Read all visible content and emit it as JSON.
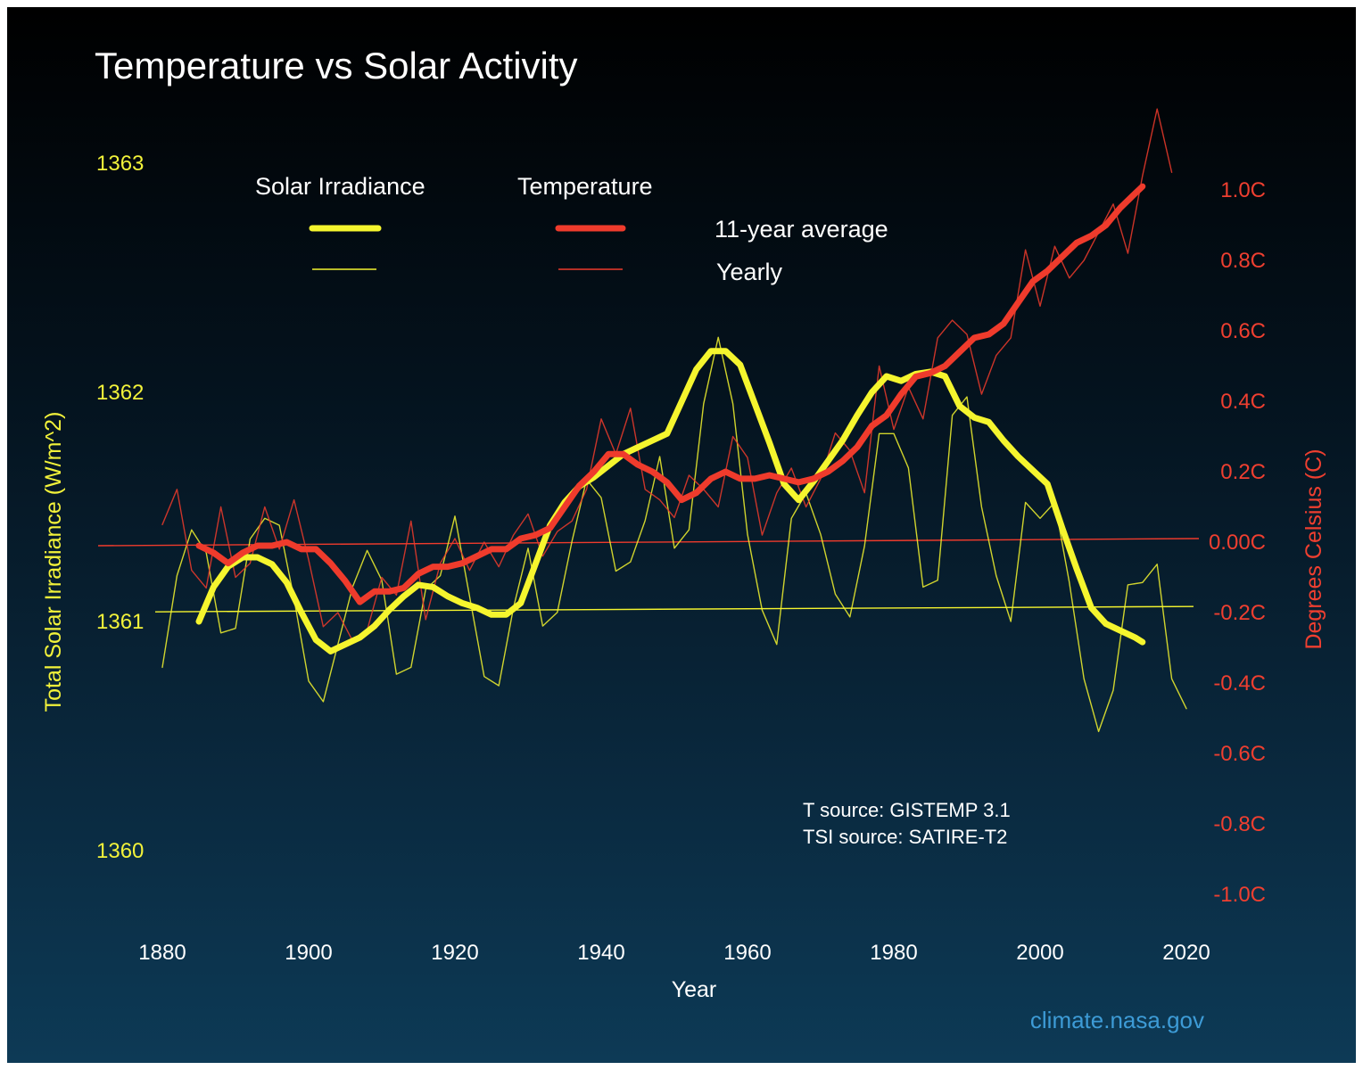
{
  "chart_data": {
    "type": "line",
    "title": "Temperature vs Solar Activity",
    "xlabel": "Year",
    "ylabel_left": "Total Solar Irradiance (W/m^2)",
    "ylabel_right": "Degrees Celsius (C)",
    "xlim": [
      1875,
      2025
    ],
    "ylim_left": [
      1359.6,
      1363.3
    ],
    "ylim_right": [
      -1.1,
      1.2
    ],
    "x_ticks": [
      "1880",
      "1900",
      "1920",
      "1940",
      "1960",
      "1980",
      "2000",
      "2020"
    ],
    "y_ticks_left": [
      {
        "value": 1363,
        "label": "1363"
      },
      {
        "value": 1362,
        "label": "1362"
      },
      {
        "value": 1361,
        "label": "1361"
      },
      {
        "value": 1360,
        "label": "1360"
      }
    ],
    "y_ticks_right": [
      {
        "value": 1.0,
        "label": "1.0C"
      },
      {
        "value": 0.8,
        "label": "0.8C"
      },
      {
        "value": 0.6,
        "label": "0.6C"
      },
      {
        "value": 0.4,
        "label": "0.4C"
      },
      {
        "value": 0.2,
        "label": "0.2C"
      },
      {
        "value": 0.0,
        "label": "0.00C"
      },
      {
        "value": -0.2,
        "label": "-0.2C"
      },
      {
        "value": -0.4,
        "label": "-0.4C"
      },
      {
        "value": -0.6,
        "label": "-0.6C"
      },
      {
        "value": -0.8,
        "label": "-0.8C"
      },
      {
        "value": -1.0,
        "label": "-1.0C"
      }
    ],
    "colors": {
      "solar": "#f5f52e",
      "temperature": "#ef3b2c",
      "credit": "#3d9bd6"
    },
    "legend": {
      "group_solar": "Solar Irradiance",
      "group_temperature": "Temperature",
      "row_average": "11-year average",
      "row_yearly": "Yearly"
    },
    "sources": [
      "T source: GISTEMP 3.1",
      "TSI source: SATIRE-T2"
    ],
    "credit": "climate.nasa.gov",
    "reference_lines": {
      "tsi": 1361.05,
      "temperature": 0.0
    },
    "series": [
      {
        "name": "Solar Irradiance 11-year average",
        "axis": "left",
        "style": "thick",
        "x": [
          1885,
          1887,
          1889,
          1891,
          1893,
          1895,
          1897,
          1899,
          1901,
          1903,
          1905,
          1907,
          1909,
          1911,
          1913,
          1915,
          1917,
          1919,
          1921,
          1923,
          1925,
          1927,
          1929,
          1931,
          1933,
          1935,
          1937,
          1939,
          1941,
          1943,
          1945,
          1947,
          1949,
          1951,
          1953,
          1955,
          1957,
          1959,
          1961,
          1963,
          1965,
          1967,
          1969,
          1971,
          1973,
          1975,
          1977,
          1979,
          1981,
          1983,
          1985,
          1987,
          1989,
          1991,
          1993,
          1995,
          1997,
          1999,
          2001,
          2003,
          2005,
          2007,
          2009,
          2011,
          2013,
          2014
        ],
        "y": [
          1361.0,
          1361.15,
          1361.24,
          1361.28,
          1361.28,
          1361.25,
          1361.17,
          1361.04,
          1360.92,
          1360.87,
          1360.9,
          1360.93,
          1360.98,
          1361.05,
          1361.11,
          1361.16,
          1361.15,
          1361.11,
          1361.08,
          1361.06,
          1361.03,
          1361.03,
          1361.08,
          1361.25,
          1361.42,
          1361.52,
          1361.59,
          1361.63,
          1361.68,
          1361.73,
          1361.76,
          1361.79,
          1361.82,
          1361.96,
          1362.1,
          1362.18,
          1362.18,
          1362.12,
          1361.95,
          1361.78,
          1361.6,
          1361.53,
          1361.61,
          1361.7,
          1361.79,
          1361.9,
          1362.0,
          1362.07,
          1362.05,
          1362.08,
          1362.09,
          1362.07,
          1361.94,
          1361.89,
          1361.87,
          1361.79,
          1361.72,
          1361.66,
          1361.6,
          1361.41,
          1361.23,
          1361.06,
          1360.99,
          1360.96,
          1360.93,
          1360.91
        ]
      },
      {
        "name": "Solar Irradiance yearly",
        "axis": "left",
        "style": "thin",
        "x": [
          1880,
          1882,
          1884,
          1886,
          1888,
          1890,
          1892,
          1894,
          1896,
          1898,
          1900,
          1902,
          1904,
          1906,
          1908,
          1910,
          1912,
          1914,
          1916,
          1918,
          1920,
          1922,
          1924,
          1926,
          1928,
          1930,
          1932,
          1934,
          1936,
          1938,
          1940,
          1942,
          1944,
          1946,
          1948,
          1950,
          1952,
          1954,
          1956,
          1958,
          1960,
          1962,
          1964,
          1966,
          1968,
          1970,
          1972,
          1974,
          1976,
          1978,
          1980,
          1982,
          1984,
          1986,
          1988,
          1990,
          1992,
          1994,
          1996,
          1998,
          2000,
          2002,
          2004,
          2006,
          2008,
          2010,
          2012,
          2014,
          2016,
          2018,
          2020
        ],
        "y": [
          1360.8,
          1361.2,
          1361.4,
          1361.3,
          1360.95,
          1360.97,
          1361.36,
          1361.45,
          1361.42,
          1361.1,
          1360.74,
          1360.65,
          1360.9,
          1361.15,
          1361.31,
          1361.18,
          1360.77,
          1360.8,
          1361.14,
          1361.2,
          1361.46,
          1361.11,
          1360.76,
          1360.72,
          1361.06,
          1361.32,
          1360.98,
          1361.04,
          1361.35,
          1361.62,
          1361.54,
          1361.22,
          1361.26,
          1361.44,
          1361.72,
          1361.32,
          1361.4,
          1361.95,
          1362.24,
          1361.95,
          1361.38,
          1361.05,
          1360.9,
          1361.45,
          1361.56,
          1361.38,
          1361.12,
          1361.02,
          1361.33,
          1361.82,
          1361.82,
          1361.67,
          1361.15,
          1361.18,
          1361.9,
          1361.98,
          1361.5,
          1361.2,
          1361.0,
          1361.52,
          1361.45,
          1361.52,
          1361.17,
          1360.75,
          1360.52,
          1360.7,
          1361.16,
          1361.17,
          1361.25,
          1360.75,
          1360.62
        ]
      },
      {
        "name": "Temperature 11-year average",
        "axis": "right",
        "style": "thick",
        "x": [
          1885,
          1887,
          1889,
          1891,
          1893,
          1895,
          1897,
          1899,
          1901,
          1903,
          1905,
          1907,
          1909,
          1911,
          1913,
          1915,
          1917,
          1919,
          1921,
          1923,
          1925,
          1927,
          1929,
          1931,
          1933,
          1935,
          1937,
          1939,
          1941,
          1943,
          1945,
          1947,
          1949,
          1951,
          1953,
          1955,
          1957,
          1959,
          1961,
          1963,
          1965,
          1967,
          1969,
          1971,
          1973,
          1975,
          1977,
          1979,
          1981,
          1983,
          1985,
          1987,
          1989,
          1991,
          1993,
          1995,
          1997,
          1999,
          2001,
          2003,
          2005,
          2007,
          2009,
          2011,
          2013,
          2014
        ],
        "y": [
          -0.01,
          -0.03,
          -0.06,
          -0.03,
          -0.01,
          -0.01,
          0.0,
          -0.02,
          -0.02,
          -0.06,
          -0.11,
          -0.17,
          -0.14,
          -0.14,
          -0.13,
          -0.09,
          -0.07,
          -0.07,
          -0.06,
          -0.04,
          -0.02,
          -0.02,
          0.01,
          0.02,
          0.04,
          0.1,
          0.16,
          0.2,
          0.25,
          0.25,
          0.22,
          0.2,
          0.17,
          0.12,
          0.14,
          0.18,
          0.2,
          0.18,
          0.18,
          0.19,
          0.18,
          0.17,
          0.18,
          0.2,
          0.23,
          0.27,
          0.33,
          0.36,
          0.42,
          0.47,
          0.48,
          0.5,
          0.54,
          0.58,
          0.59,
          0.62,
          0.68,
          0.74,
          0.77,
          0.81,
          0.85,
          0.87,
          0.9,
          0.95,
          0.99,
          1.01
        ]
      },
      {
        "name": "Temperature yearly",
        "axis": "right",
        "style": "thin",
        "x": [
          1880,
          1882,
          1884,
          1886,
          1888,
          1890,
          1892,
          1894,
          1896,
          1898,
          1900,
          1902,
          1904,
          1906,
          1908,
          1910,
          1912,
          1914,
          1916,
          1918,
          1920,
          1922,
          1924,
          1926,
          1928,
          1930,
          1932,
          1934,
          1936,
          1938,
          1940,
          1942,
          1944,
          1946,
          1948,
          1950,
          1952,
          1954,
          1956,
          1958,
          1960,
          1962,
          1964,
          1966,
          1968,
          1970,
          1972,
          1974,
          1976,
          1978,
          1980,
          1982,
          1984,
          1986,
          1988,
          1990,
          1992,
          1994,
          1996,
          1998,
          2000,
          2002,
          2004,
          2006,
          2008,
          2010,
          2012,
          2014,
          2016,
          2018
        ],
        "y": [
          0.05,
          0.15,
          -0.08,
          -0.13,
          0.1,
          -0.1,
          -0.06,
          0.1,
          -0.02,
          0.12,
          -0.05,
          -0.24,
          -0.2,
          -0.28,
          -0.25,
          -0.1,
          -0.15,
          0.06,
          -0.22,
          -0.06,
          0.01,
          -0.08,
          0.0,
          -0.07,
          0.02,
          0.08,
          -0.04,
          0.03,
          0.06,
          0.15,
          0.35,
          0.25,
          0.38,
          0.15,
          0.12,
          0.07,
          0.19,
          0.15,
          0.1,
          0.3,
          0.24,
          0.02,
          0.14,
          0.21,
          0.1,
          0.18,
          0.31,
          0.26,
          0.14,
          0.5,
          0.32,
          0.44,
          0.35,
          0.58,
          0.63,
          0.59,
          0.42,
          0.53,
          0.58,
          0.83,
          0.67,
          0.84,
          0.75,
          0.8,
          0.88,
          0.96,
          0.82,
          1.04,
          1.23,
          1.05
        ]
      }
    ]
  }
}
